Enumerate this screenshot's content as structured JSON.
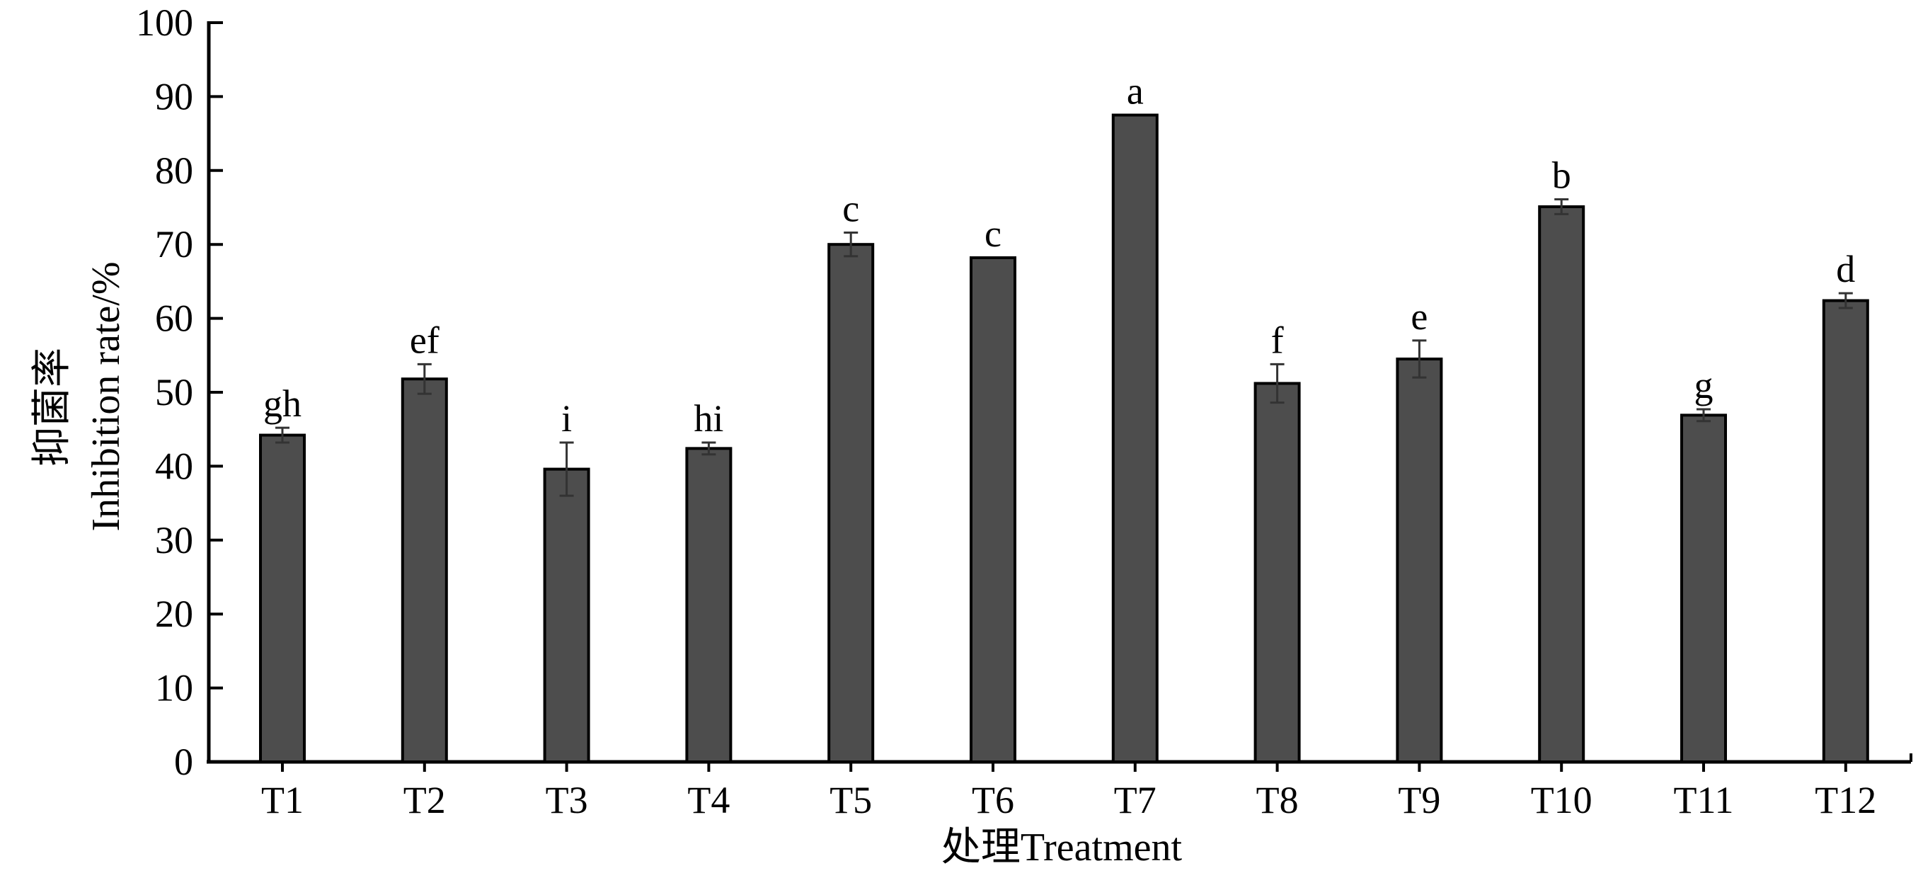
{
  "chart_data": {
    "type": "bar",
    "categories": [
      "T1",
      "T2",
      "T3",
      "T4",
      "T5",
      "T6",
      "T7",
      "T8",
      "T9",
      "T10",
      "T11",
      "T12"
    ],
    "values": [
      44.2,
      51.8,
      39.6,
      42.4,
      70.0,
      68.2,
      87.5,
      51.2,
      54.5,
      75.1,
      46.9,
      62.4
    ],
    "errors": [
      1.0,
      2.0,
      3.6,
      0.8,
      1.6,
      0.0,
      0.0,
      2.6,
      2.5,
      1.0,
      0.8,
      1.0
    ],
    "significance": [
      "gh",
      "ef",
      "i",
      "hi",
      "c",
      "c",
      "a",
      "f",
      "e",
      "b",
      "g",
      "d"
    ],
    "xlabel": "处理Treatment",
    "ylabel": "Inhibition rate/%",
    "ylabel_cn": "抑菌率",
    "ylim": [
      0,
      100
    ],
    "yticks": [
      "0",
      "10",
      "20",
      "30",
      "40",
      "50",
      "60",
      "70",
      "80",
      "90",
      "100"
    ],
    "grid": false,
    "bar_color": "#4d4d4d"
  }
}
